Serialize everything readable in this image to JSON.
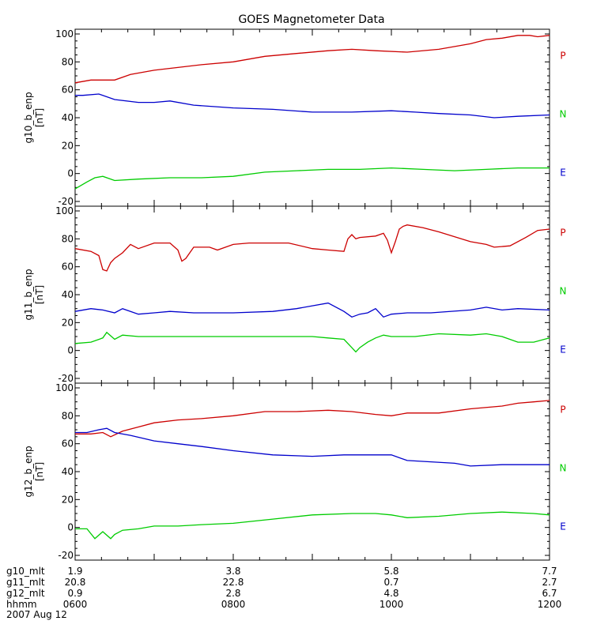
{
  "chart_data": {
    "type": "line",
    "title": "GOES Magnetometer Data",
    "x_ticks": [
      "0600",
      "0800",
      "1000",
      "1200"
    ],
    "xlim": [
      0,
      6
    ],
    "footer_rows": [
      {
        "label": "g10_mlt",
        "values": [
          "1.9",
          "3.8",
          "5.8",
          "7.7"
        ]
      },
      {
        "label": "g11_mlt",
        "values": [
          "20.8",
          "22.8",
          "0.7",
          "2.7"
        ]
      },
      {
        "label": "g12_mlt",
        "values": [
          "0.9",
          "2.8",
          "4.8",
          "6.7"
        ]
      },
      {
        "label": "hhmm",
        "values": [
          "0600",
          "0800",
          "1000",
          "1200"
        ]
      }
    ],
    "date": "2007 Aug 12",
    "panels": [
      {
        "ylabel": "g10_b_enp",
        "yunit": "[nT]",
        "ylim": [
          -20,
          100
        ],
        "yticks": [
          -20,
          0,
          20,
          40,
          60,
          80,
          100
        ],
        "series": [
          {
            "name": "P",
            "color": "#cc0000",
            "x": [
              0,
              0.2,
              0.35,
              0.5,
              0.7,
              1,
              1.3,
              1.6,
              2,
              2.4,
              2.8,
              3.2,
              3.5,
              3.8,
              4.2,
              4.6,
              5,
              5.2,
              5.4,
              5.6,
              5.75,
              5.85,
              6
            ],
            "y": [
              65,
              67,
              67,
              67,
              71,
              74,
              76,
              78,
              80,
              84,
              86,
              88,
              89,
              88,
              87,
              89,
              93,
              96,
              97,
              99,
              99,
              98,
              99
            ]
          },
          {
            "name": "N",
            "color": "#0000cc",
            "x": [
              0,
              0.1,
              0.3,
              0.5,
              0.8,
              1,
              1.2,
              1.5,
              2,
              2.5,
              3,
              3.5,
              4,
              4.3,
              4.6,
              5,
              5.3,
              5.6,
              6
            ],
            "y": [
              56,
              56,
              57,
              53,
              51,
              51,
              52,
              49,
              47,
              46,
              44,
              44,
              45,
              44,
              43,
              42,
              40,
              41,
              42
            ]
          },
          {
            "name": "E",
            "color": "#00cc00",
            "x": [
              0,
              0.15,
              0.25,
              0.35,
              0.5,
              0.8,
              1.2,
              1.6,
              2,
              2.4,
              2.8,
              3.2,
              3.6,
              4,
              4.4,
              4.8,
              5.2,
              5.6,
              5.9,
              6
            ],
            "y": [
              -11,
              -6,
              -3,
              -2,
              -5,
              -4,
              -3,
              -3,
              -2,
              1,
              2,
              3,
              3,
              4,
              3,
              2,
              3,
              4,
              4,
              4
            ]
          }
        ]
      },
      {
        "ylabel": "g11_b_enp",
        "yunit": "[nT]",
        "ylim": [
          -20,
          100
        ],
        "yticks": [
          -20,
          0,
          20,
          40,
          60,
          80,
          100
        ],
        "series": [
          {
            "name": "P",
            "color": "#cc0000",
            "x": [
              0,
              0.2,
              0.3,
              0.35,
              0.4,
              0.45,
              0.5,
              0.6,
              0.7,
              0.8,
              1,
              1.2,
              1.3,
              1.35,
              1.4,
              1.45,
              1.5,
              1.7,
              1.8,
              2,
              2.2,
              2.4,
              2.7,
              3,
              3.2,
              3.4,
              3.45,
              3.5,
              3.55,
              3.6,
              3.8,
              3.9,
              3.95,
              4,
              4.05,
              4.1,
              4.15,
              4.2,
              4.4,
              4.6,
              5,
              5.2,
              5.3,
              5.5,
              5.7,
              5.85,
              6
            ],
            "y": [
              73,
              71,
              68,
              58,
              57,
              63,
              66,
              70,
              76,
              73,
              77,
              77,
              72,
              64,
              66,
              70,
              74,
              74,
              72,
              76,
              77,
              77,
              77,
              73,
              72,
              71,
              80,
              83,
              80,
              81,
              82,
              84,
              79,
              70,
              78,
              87,
              89,
              90,
              88,
              85,
              78,
              76,
              74,
              75,
              81,
              86,
              87
            ]
          },
          {
            "name": "N",
            "color": "#0000cc",
            "x": [
              0,
              0.2,
              0.35,
              0.5,
              0.6,
              0.8,
              1,
              1.2,
              1.5,
              2,
              2.5,
              2.8,
              3,
              3.2,
              3.4,
              3.5,
              3.6,
              3.7,
              3.8,
              3.9,
              4,
              4.2,
              4.5,
              5,
              5.2,
              5.4,
              5.6,
              6
            ],
            "y": [
              28,
              30,
              29,
              27,
              30,
              26,
              27,
              28,
              27,
              27,
              28,
              30,
              32,
              34,
              28,
              24,
              26,
              27,
              30,
              24,
              26,
              27,
              27,
              29,
              31,
              29,
              30,
              29
            ]
          },
          {
            "name": "E",
            "color": "#00cc00",
            "x": [
              0,
              0.2,
              0.35,
              0.4,
              0.5,
              0.6,
              0.8,
              1,
              1.5,
              2,
              2.5,
              3,
              3.2,
              3.4,
              3.5,
              3.55,
              3.6,
              3.7,
              3.8,
              3.9,
              4,
              4.3,
              4.6,
              5,
              5.2,
              5.4,
              5.6,
              5.8,
              6
            ],
            "y": [
              5,
              6,
              9,
              13,
              8,
              11,
              10,
              10,
              10,
              10,
              10,
              10,
              9,
              8,
              2,
              -1,
              2,
              6,
              9,
              11,
              10,
              10,
              12,
              11,
              12,
              10,
              6,
              6,
              9
            ]
          }
        ]
      },
      {
        "ylabel": "g12_b_enp",
        "yunit": "[nT]",
        "ylim": [
          -20,
          100
        ],
        "yticks": [
          -20,
          0,
          20,
          40,
          60,
          80,
          100
        ],
        "series": [
          {
            "name": "P",
            "color": "#cc0000",
            "x": [
              0,
              0.2,
              0.35,
              0.45,
              0.6,
              0.8,
              1,
              1.3,
              1.6,
              2,
              2.4,
              2.8,
              3.2,
              3.5,
              3.8,
              4,
              4.2,
              4.6,
              5,
              5.4,
              5.6,
              5.8,
              6
            ],
            "y": [
              67,
              67,
              68,
              65,
              69,
              72,
              75,
              77,
              78,
              80,
              83,
              83,
              84,
              83,
              81,
              80,
              82,
              82,
              85,
              87,
              89,
              90,
              91
            ]
          },
          {
            "name": "N",
            "color": "#0000cc",
            "x": [
              0,
              0.15,
              0.3,
              0.4,
              0.5,
              0.7,
              1,
              1.3,
              1.6,
              2,
              2.5,
              3,
              3.4,
              3.8,
              4,
              4.2,
              4.5,
              4.8,
              5,
              5.4,
              5.8,
              6
            ],
            "y": [
              68,
              68,
              70,
              71,
              68,
              66,
              62,
              60,
              58,
              55,
              52,
              51,
              52,
              52,
              52,
              48,
              47,
              46,
              44,
              45,
              45,
              45
            ]
          },
          {
            "name": "E",
            "color": "#00cc00",
            "x": [
              0,
              0.15,
              0.25,
              0.35,
              0.45,
              0.5,
              0.6,
              0.8,
              1,
              1.3,
              1.6,
              2,
              2.5,
              3,
              3.5,
              3.8,
              4,
              4.2,
              4.6,
              5,
              5.4,
              5.8,
              6
            ],
            "y": [
              -1,
              -1,
              -8,
              -3,
              -8,
              -5,
              -2,
              -1,
              1,
              1,
              2,
              3,
              6,
              9,
              10,
              10,
              9,
              7,
              8,
              10,
              11,
              10,
              9
            ]
          }
        ]
      }
    ]
  }
}
